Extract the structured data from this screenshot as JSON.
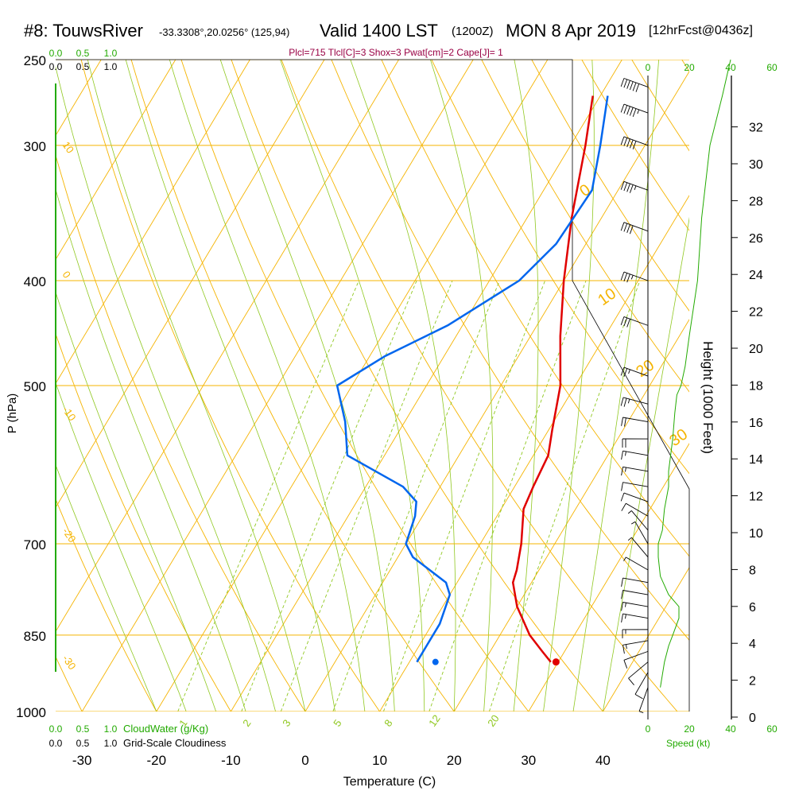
{
  "header": {
    "station": "#8: TouwsRiver",
    "coords": "-33.3308°,20.0256° (125,94)",
    "valid": "Valid 1400 LST",
    "utc": "(1200Z)",
    "date": "MON 8 Apr 2019",
    "forecast": "[12hrFcst@0436z]",
    "indices": "Plcl=715 Tlcl[C]=3 Shox=3 Pwat[cm]=2 Cape[J]= 1"
  },
  "colors": {
    "isobar": "#f5b400",
    "dry_adiabat": "#f5b400",
    "moist_adiabat": "#90c820",
    "mixing_ratio": "#90c820",
    "temperature": "#e00000",
    "dewpoint": "#0066ee",
    "green_text": "#22aa00",
    "indices": "#990044"
  },
  "chart_data": {
    "type": "line",
    "title": "Skew-T log-P sounding",
    "xlabel": "Temperature (C)",
    "ylabel": "P (hPa)",
    "right_axis_label": "Height (1000 Feet)",
    "x_ticks": [
      "-30",
      "-20",
      "-10",
      "0",
      "10",
      "20",
      "30",
      "40"
    ],
    "y_ticks": [
      "250",
      "300",
      "400",
      "500",
      "700",
      "850",
      "1000"
    ],
    "height_ticks": [
      "0",
      "2",
      "4",
      "6",
      "8",
      "10",
      "12",
      "14",
      "16",
      "18",
      "20",
      "22",
      "24",
      "26",
      "28",
      "30",
      "32"
    ],
    "dry_adiabat_labels": [
      "-10",
      "0",
      "10",
      "20",
      "30"
    ],
    "isotherm_labels_left": [
      "10",
      "0",
      "-10",
      "-20",
      "-30"
    ],
    "moist_labels": [
      "1",
      "2",
      "3",
      "5",
      "8",
      "12",
      "20"
    ],
    "cloud_scale_top_green": [
      "0.0",
      "0.5",
      "1.0"
    ],
    "cloud_scale_top_black": [
      "0.0",
      "0.5",
      "1.0"
    ],
    "cloud_scale_bottom_green": [
      "0.0",
      "0.5",
      "1.0"
    ],
    "cloud_scale_bottom_black": [
      "0.0",
      "0.5",
      "1.0"
    ],
    "cloudwater_label": "CloudWater (g/Kg)",
    "cloudiness_label": "Grid-Scale Cloudiness",
    "speed_ticks_top_black": [
      "0"
    ],
    "speed_ticks_top_green": [
      "20",
      "40",
      "60"
    ],
    "speed_ticks_bottom_black": [
      "0",
      "20",
      "40"
    ],
    "speed_ticks_bottom_green": [
      "60"
    ],
    "speed_label": "Speed (kt)",
    "temperature": {
      "surface": 29.7,
      "points": [
        [
          900,
          29
        ],
        [
          880,
          27
        ],
        [
          850,
          24
        ],
        [
          800,
          20
        ],
        [
          760,
          17.5
        ],
        [
          740,
          17
        ],
        [
          700,
          15.5
        ],
        [
          650,
          13
        ],
        [
          620,
          12.5
        ],
        [
          580,
          12
        ],
        [
          550,
          10.5
        ],
        [
          500,
          8
        ],
        [
          450,
          4
        ],
        [
          400,
          0
        ],
        [
          350,
          -4
        ],
        [
          300,
          -8
        ],
        [
          270,
          -11
        ]
      ]
    },
    "dewpoint": {
      "surface": 13.5,
      "points": [
        [
          900,
          11
        ],
        [
          870,
          11
        ],
        [
          830,
          11
        ],
        [
          780,
          10
        ],
        [
          760,
          8.5
        ],
        [
          720,
          2
        ],
        [
          700,
          0
        ],
        [
          660,
          -1
        ],
        [
          640,
          -2
        ],
        [
          620,
          -5
        ],
        [
          580,
          -15
        ],
        [
          540,
          -18
        ],
        [
          500,
          -22
        ],
        [
          470,
          -18
        ],
        [
          440,
          -12
        ],
        [
          400,
          -6
        ],
        [
          370,
          -4
        ],
        [
          330,
          -3.5
        ],
        [
          300,
          -6
        ],
        [
          270,
          -9
        ]
      ]
    },
    "wind_speed": [
      [
        950,
        6
      ],
      [
        900,
        8
      ],
      [
        870,
        10
      ],
      [
        850,
        12
      ],
      [
        820,
        15
      ],
      [
        800,
        15
      ],
      [
        780,
        10
      ],
      [
        750,
        6
      ],
      [
        720,
        5
      ],
      [
        700,
        5
      ],
      [
        680,
        7
      ],
      [
        650,
        8
      ],
      [
        620,
        10
      ],
      [
        600,
        10
      ],
      [
        560,
        12
      ],
      [
        530,
        13
      ],
      [
        510,
        14
      ],
      [
        500,
        16
      ],
      [
        480,
        18
      ],
      [
        450,
        20
      ],
      [
        400,
        24
      ],
      [
        350,
        26
      ],
      [
        300,
        30
      ],
      [
        270,
        36
      ],
      [
        250,
        40
      ]
    ],
    "barbs": [
      [
        950,
        8,
        200
      ],
      [
        920,
        10,
        210
      ],
      [
        900,
        12,
        230
      ],
      [
        880,
        14,
        250
      ],
      [
        860,
        16,
        260
      ],
      [
        840,
        18,
        270
      ],
      [
        820,
        18,
        280
      ],
      [
        800,
        18,
        280
      ],
      [
        780,
        14,
        280
      ],
      [
        760,
        10,
        280
      ],
      [
        740,
        6,
        300
      ],
      [
        720,
        5,
        320
      ],
      [
        700,
        6,
        330
      ],
      [
        680,
        8,
        320
      ],
      [
        660,
        10,
        300
      ],
      [
        640,
        12,
        290
      ],
      [
        620,
        14,
        280
      ],
      [
        600,
        16,
        280
      ],
      [
        580,
        16,
        280
      ],
      [
        560,
        20,
        270
      ],
      [
        540,
        22,
        280
      ],
      [
        520,
        25,
        285
      ],
      [
        490,
        28,
        290
      ],
      [
        440,
        30,
        290
      ],
      [
        400,
        35,
        290
      ],
      [
        360,
        40,
        290
      ],
      [
        330,
        45,
        290
      ],
      [
        300,
        50,
        290
      ],
      [
        280,
        55,
        290
      ],
      [
        265,
        60,
        290
      ]
    ]
  }
}
